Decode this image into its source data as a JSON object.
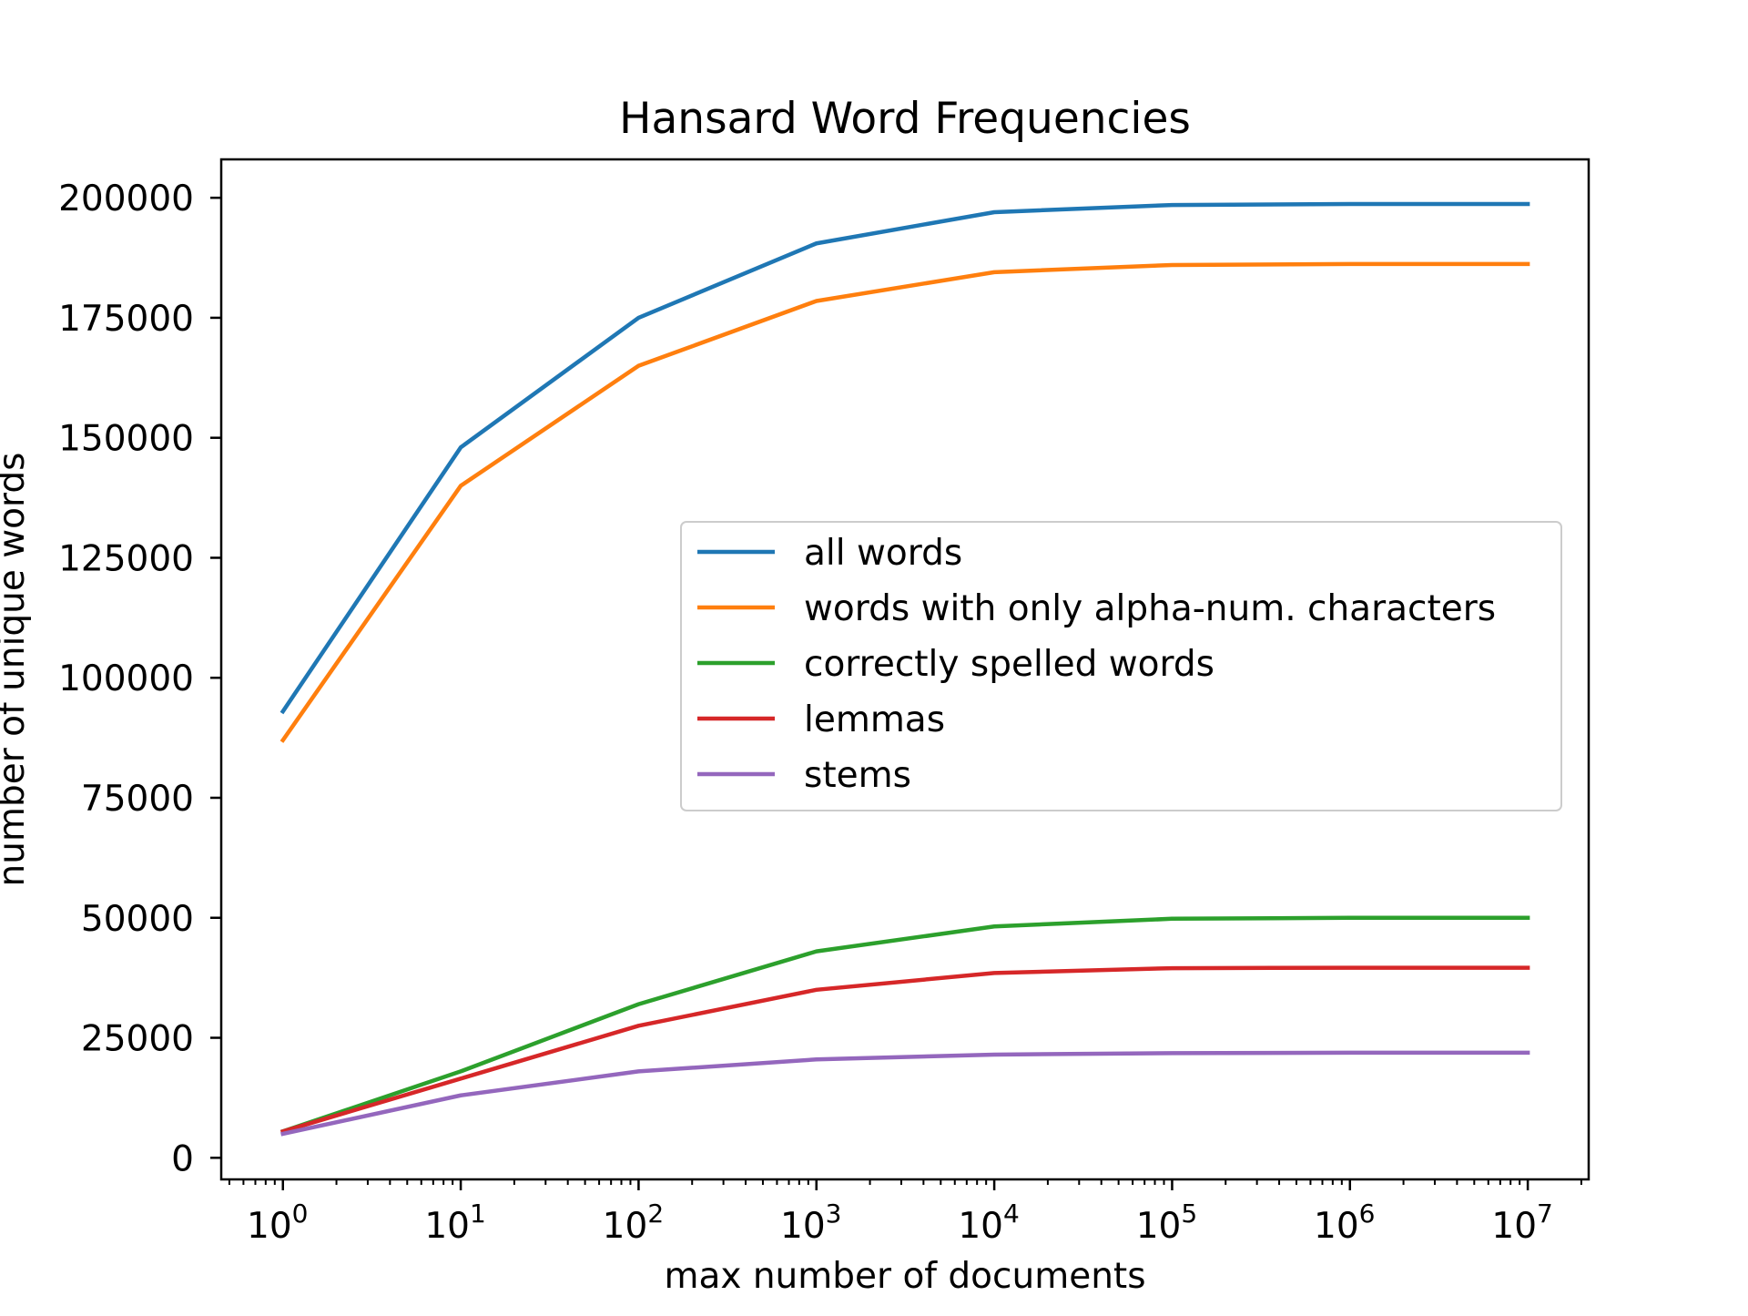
{
  "chart_data": {
    "type": "line",
    "title": "Hansard Word Frequencies",
    "xlabel": "max number of documents",
    "ylabel": "number of unique words",
    "x_scale": "log",
    "x": [
      1,
      10,
      100,
      1000,
      10000,
      100000,
      1000000,
      10000000
    ],
    "xlim": [
      0.45,
      22000000
    ],
    "ylim": [
      -4500,
      208000
    ],
    "x_ticks": [
      {
        "value": 1,
        "base": "10",
        "exp": "0"
      },
      {
        "value": 10,
        "base": "10",
        "exp": "1"
      },
      {
        "value": 100,
        "base": "10",
        "exp": "2"
      },
      {
        "value": 1000,
        "base": "10",
        "exp": "3"
      },
      {
        "value": 10000,
        "base": "10",
        "exp": "4"
      },
      {
        "value": 100000,
        "base": "10",
        "exp": "5"
      },
      {
        "value": 1000000,
        "base": "10",
        "exp": "6"
      },
      {
        "value": 10000000,
        "base": "10",
        "exp": "7"
      }
    ],
    "y_ticks": [
      "0",
      "25000",
      "50000",
      "75000",
      "100000",
      "125000",
      "150000",
      "175000",
      "200000"
    ],
    "grid": false,
    "legend_position": "center-right",
    "series": [
      {
        "name": "all words",
        "color": "#1f77b4",
        "values": [
          93000,
          148000,
          175000,
          190500,
          197000,
          198500,
          198700,
          198700
        ]
      },
      {
        "name": "words with only alpha-num. characters",
        "color": "#ff7f0e",
        "values": [
          87000,
          140000,
          165000,
          178500,
          184500,
          186000,
          186200,
          186200
        ]
      },
      {
        "name": "correctly spelled words",
        "color": "#2ca02c",
        "values": [
          5500,
          18000,
          32000,
          43000,
          48200,
          49800,
          50000,
          50000
        ]
      },
      {
        "name": "lemmas",
        "color": "#d62728",
        "values": [
          5500,
          16500,
          27500,
          35000,
          38500,
          39500,
          39600,
          39600
        ]
      },
      {
        "name": "stems",
        "color": "#9467bd",
        "values": [
          5000,
          13000,
          18000,
          20500,
          21500,
          21800,
          21900,
          21900
        ]
      }
    ]
  }
}
